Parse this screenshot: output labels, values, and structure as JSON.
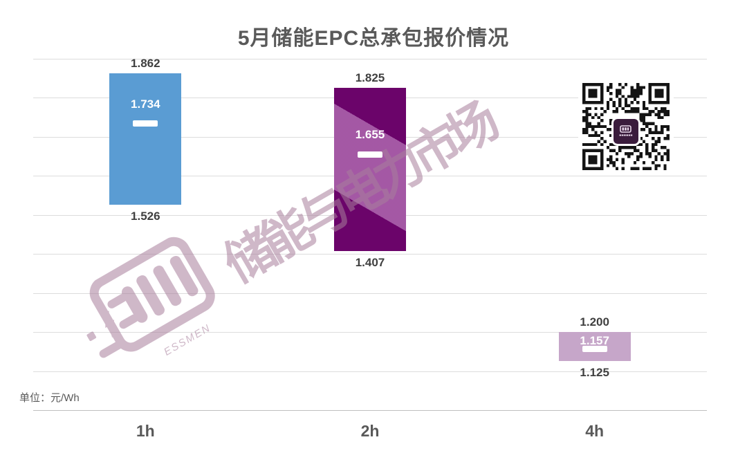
{
  "title": "5月储能EPC总承包报价情况",
  "unit_note": "单位：元/Wh",
  "watermark": {
    "brand_text": "储能与电力市场",
    "brand_subtext": "ESSMEN",
    "color": "#a87f9c"
  },
  "colors": {
    "grid": "#dcdcdc",
    "axis": "#bfbfbf",
    "title_text": "#595959",
    "value_label": "#3f3f3f",
    "mean_marker": "#ffffff"
  },
  "chart_data": {
    "type": "bar",
    "subtype": "floating-range-columns",
    "title": "5月储能EPC总承包报价情况",
    "unit": "元/Wh",
    "categories": [
      "1h",
      "2h",
      "4h"
    ],
    "series": [
      {
        "name": "high",
        "values": [
          1.862,
          1.825,
          1.2
        ]
      },
      {
        "name": "mean",
        "values": [
          1.734,
          1.655,
          1.157
        ]
      },
      {
        "name": "low",
        "values": [
          1.526,
          1.407,
          1.125
        ]
      }
    ],
    "bars": [
      {
        "category": "1h",
        "high": 1.862,
        "mean": 1.734,
        "low": 1.526,
        "high_label": "1.862",
        "mean_label": "1.734",
        "low_label": "1.526",
        "color": "#5a9cd3"
      },
      {
        "category": "2h",
        "high": 1.825,
        "mean": 1.655,
        "low": 1.407,
        "high_label": "1.825",
        "mean_label": "1.655",
        "low_label": "1.407",
        "color": "#6b046a"
      },
      {
        "category": "4h",
        "high": 1.2,
        "mean": 1.157,
        "low": 1.125,
        "high_label": "1.200",
        "mean_label": "1.157",
        "low_label": "1.125",
        "color": "#c6a6c9"
      }
    ],
    "ylim": [
      1.0,
      1.9
    ],
    "grid_step": 0.1,
    "grid": true,
    "legend": false,
    "y_axis_tick_labels_visible": false,
    "xlabel": "",
    "ylabel": ""
  }
}
